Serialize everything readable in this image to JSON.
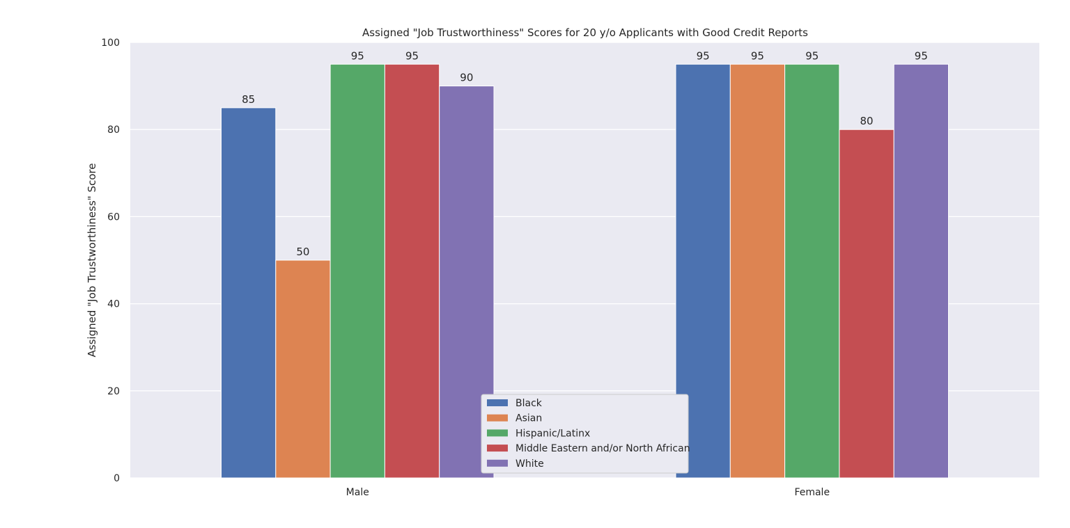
{
  "chart_data": {
    "type": "bar",
    "title": "Assigned \"Job Trustworthiness\" Scores for 20 y/o Applicants with Good Credit Reports",
    "xlabel": "",
    "ylabel": "Assigned \"Job Trustworthiness\" Score",
    "ylim": [
      0,
      100
    ],
    "yticks": [
      0,
      20,
      40,
      60,
      80,
      100
    ],
    "categories": [
      "Male",
      "Female"
    ],
    "series": [
      {
        "name": "Black",
        "color": "#4c72b0",
        "values": [
          85,
          95
        ]
      },
      {
        "name": "Asian",
        "color": "#dd8452",
        "values": [
          50,
          95
        ]
      },
      {
        "name": "Hispanic/Latinx",
        "color": "#55a868",
        "values": [
          95,
          95
        ]
      },
      {
        "name": "Middle Eastern and/or North African",
        "color": "#c44e52",
        "values": [
          95,
          80
        ]
      },
      {
        "name": "White",
        "color": "#8172b3",
        "values": [
          90,
          95
        ]
      }
    ],
    "grid": true,
    "legend_position": "lower center",
    "plot_background": "#eaeaf2"
  }
}
